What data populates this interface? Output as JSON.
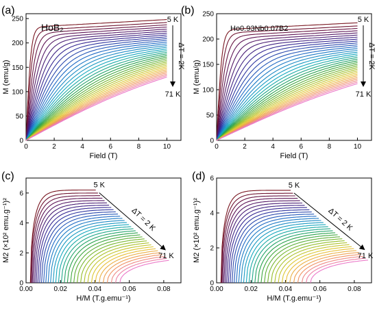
{
  "chart_data": [
    {
      "panel": "(a)",
      "type": "line",
      "sample": "HoB₂",
      "xlabel": "Field (T)",
      "ylabel": "M (emu/g)",
      "xlim": [
        0,
        11
      ],
      "ylim": [
        0,
        260
      ],
      "xticks": [
        0,
        2,
        4,
        6,
        8,
        10
      ],
      "yticks": [
        0,
        50,
        100,
        150,
        200,
        250
      ],
      "curves": {
        "temperatures_K": [
          5,
          7,
          9,
          11,
          13,
          15,
          17,
          19,
          21,
          23,
          25,
          27,
          29,
          31,
          33,
          35,
          37,
          39,
          41,
          43,
          45,
          47,
          49,
          51,
          53,
          55,
          57,
          59,
          61,
          63,
          65,
          67,
          69,
          71
        ],
        "x_range": [
          0,
          10
        ],
        "M_at_10T": {
          "5K": 248,
          "71K": 130
        },
        "saturation_field_5K": 1.0
      },
      "annotations": [
        "5 K",
        "ΔT = 2K",
        "71 K"
      ]
    },
    {
      "panel": "(b)",
      "type": "line",
      "sample": "Ho0.93Nb0.07B2",
      "xlabel": "Field (T)",
      "ylabel": "M (emu/g)",
      "xlim": [
        0,
        11
      ],
      "ylim": [
        0,
        250
      ],
      "xticks": [
        0,
        2,
        4,
        6,
        8,
        10
      ],
      "yticks": [
        0,
        50,
        100,
        150,
        200,
        250
      ],
      "curves": {
        "temperatures_K": [
          5,
          7,
          9,
          11,
          13,
          15,
          17,
          19,
          21,
          23,
          25,
          27,
          29,
          31,
          33,
          35,
          37,
          39,
          41,
          43,
          45,
          47,
          49,
          51,
          53,
          55,
          57,
          59,
          61,
          63,
          65,
          67,
          69,
          71
        ],
        "x_range": [
          0,
          10
        ],
        "M_at_10T": {
          "5K": 232,
          "71K": 112
        },
        "saturation_field_5K": 1.1
      },
      "annotations": [
        "5 K",
        "ΔT = 2K",
        "71 K"
      ]
    },
    {
      "panel": "(c)",
      "type": "line",
      "xlabel": "H/M (T.g.emu⁻¹)",
      "ylabel": "M2 (×10² emu.g⁻¹)²",
      "xlim": [
        0,
        0.09
      ],
      "ylim": [
        0,
        7
      ],
      "xticks": [
        0.0,
        0.02,
        0.04,
        0.06,
        0.08
      ],
      "yticks": [
        0,
        2,
        4,
        6
      ],
      "curves": {
        "temperatures_K": [
          5,
          7,
          9,
          11,
          13,
          15,
          17,
          19,
          21,
          23,
          25,
          27,
          29,
          31,
          33,
          35,
          37,
          39,
          41,
          43,
          45,
          47,
          49,
          51,
          53,
          55,
          57,
          59,
          61,
          63,
          65,
          67,
          69,
          71
        ],
        "end_points": {
          "5K": [
            0.0405,
            6.2
          ],
          "71K": [
            0.083,
            1.5
          ]
        }
      },
      "annotations": [
        "5 K",
        "ΔT = 2 K",
        "71 K"
      ]
    },
    {
      "panel": "(d)",
      "type": "line",
      "xlabel": "H/M (T.g.emu⁻¹)",
      "ylabel": "M2 (×10² emu.g⁻¹)²",
      "xlim": [
        0,
        0.09
      ],
      "ylim": [
        0,
        6
      ],
      "xticks": [
        0.0,
        0.02,
        0.04,
        0.06,
        0.08
      ],
      "yticks": [
        0,
        2,
        4,
        6
      ],
      "curves": {
        "temperatures_K": [
          5,
          7,
          9,
          11,
          13,
          15,
          17,
          19,
          21,
          23,
          25,
          27,
          29,
          31,
          33,
          35,
          37,
          39,
          41,
          43,
          45,
          47,
          49,
          51,
          53,
          55,
          57,
          59,
          61,
          63,
          65,
          67,
          69,
          71
        ],
        "end_points": {
          "5K": [
            0.043,
            5.3
          ],
          "71K": [
            0.088,
            1.3
          ]
        }
      },
      "annotations": [
        "5 K",
        "ΔT = 2 K",
        "71 K"
      ]
    }
  ]
}
